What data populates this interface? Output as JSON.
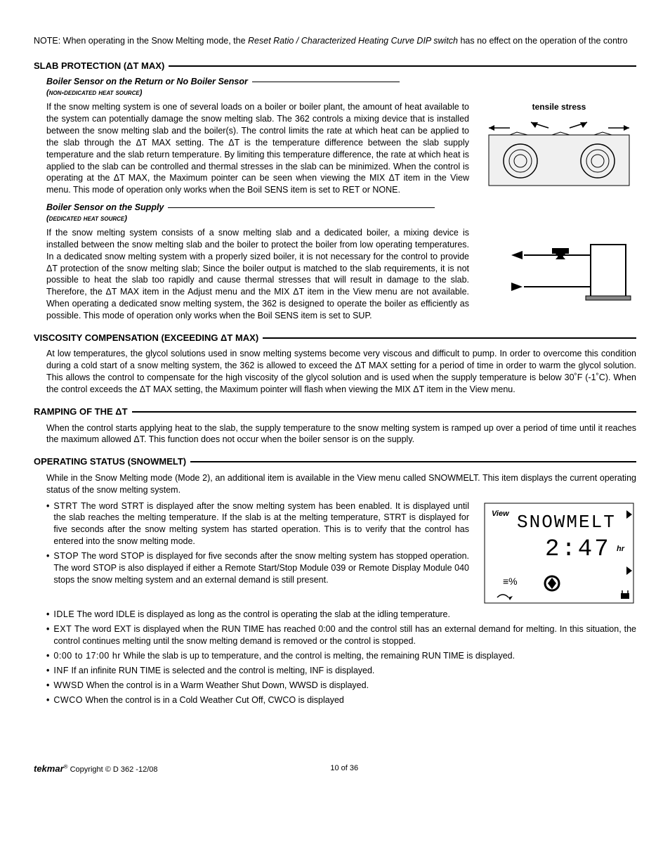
{
  "note": {
    "prefix": "NOTE: When operating in the Snow Melting mode, the ",
    "italic": "Reset Ratio / Characterized Heating Curve DIP switch",
    "suffix": " has no effect on the operation of the  contro"
  },
  "slab_protection": {
    "heading": "SLAB PROTECTION (ΔT MAX)",
    "sub1": {
      "title": "Boiler Sensor on the Return or No Boiler Sensor",
      "caption": "(non-dedicated heat source)",
      "body": "If the snow melting system is one of several loads on a boiler or boiler plant, the amount of heat available to the system can potentially damage the snow melting slab. The 362 controls a mixing device that is installed between the snow melting slab and the boiler(s). The control limits the rate at which heat can be applied to the slab through the ΔT MAX setting. The ΔT is the temperature difference between the slab supply temperature and the slab return temperature. By limiting this temperature difference, the rate at which heat is applied to the slab can be controlled and thermal stresses in the slab can be minimized. When the control is operating at the ΔT MAX, the Maximum pointer can be seen when viewing the MIX ΔT item in the View menu. This mode of operation only works when the Boil SENS item is set to RET or NONE.",
      "diagram_label": "tensile stress"
    },
    "sub2": {
      "title": "Boiler Sensor on the Supply",
      "caption": "(dedicated heat source)",
      "body": "If the snow melting system consists of a snow melting slab and a dedicated boiler, a mixing device is installed between the snow melting slab and the boiler to protect the boiler from low operating temperatures. In a dedicated snow melting system with a properly sized boiler, it is not necessary for the control to provide ΔT protection of the snow melting slab; Since the boiler output is matched to the slab requirements, it is not possible to heat the slab too rapidly and cause thermal stresses that will result in damage to the slab. Therefore, the ΔT MAX item in the Adjust menu and the MIX ΔT item in the View menu are not available. When operating a dedicated snow melting system, the 362 is designed to operate the boiler as efficiently as possible. This mode of operation only works when the Boil SENS item is set to SUP."
    }
  },
  "viscosity": {
    "heading": "VISCOSITY COMPENSATION (EXCEEDING ΔT MAX)",
    "body": "At low temperatures, the glycol solutions used in snow melting systems become very viscous and difficult to pump. In order to overcome this condition during a cold start of a snow melting system, the 362 is allowed to exceed the ΔT MAX setting for a period of time in order to warm the glycol solution. This allows the control to compensate for the high viscosity of the glycol solution and is used when the supply temperature is below 30˚F (-1˚C). When the control exceeds the ΔT MAX setting, the Maximum pointer will flash when viewing the MIX ΔT item in the View menu."
  },
  "ramping": {
    "heading": "RAMPING OF THE ΔT",
    "body": "When the control starts applying heat to the slab, the supply temperature to the snow melting system is ramped up over a period of time until it reaches the maximum allowed ΔT. This function does not occur when the boiler sensor is on the supply."
  },
  "operating": {
    "heading": "OPERATING STATUS (SNOWMELT)",
    "intro": "While in the Snow Melting mode (Mode 2), an additional item is available in the View menu called SNOWMELT. This item displays the current operating status of the snow melting system.",
    "lcd": {
      "view_label": "View",
      "line1": "SNOWMELT",
      "line2": "2:47",
      "unit": "hr"
    },
    "bullets_narrow": [
      {
        "lead": "STRT",
        "text": " The word STRT is displayed after the snow melting system has been enabled. It is displayed until the slab reaches the melting temperature. If the slab is at the melting temperature, STRT is displayed for five seconds after the snow melting system has started operation. This is to verify that the control has entered into the snow melting mode."
      },
      {
        "lead": "STOP",
        "text": " The word STOP is displayed for five seconds after the snow melting system has stopped operation. The word STOP is also displayed if either a Remote Start/Stop Module 039 or Remote Display Module 040 stops the snow melting system and an external demand is still present."
      }
    ],
    "bullets_wide": [
      {
        "lead": "IDLE",
        "text": " The word IDLE is displayed as long as the control is operating the slab at the idling temperature."
      },
      {
        "lead": "EXT",
        "text": " The word EXT is displayed when the RUN TIME has reached 0:00 and the control still has an external demand for melting. In this situation, the control continues melting until the snow melting demand is removed or the control is stopped."
      },
      {
        "lead": "0:00 to 17:00 hr",
        "text": " While the slab is up to temperature, and the control is melting, the remaining RUN TIME is displayed."
      },
      {
        "lead": "INF",
        "text": " If an infinite RUN TIME is selected and the control is melting, INF is displayed."
      },
      {
        "lead": "WWSD",
        "text": " When the control is in a Warm Weather Shut Down, WWSD is displayed."
      },
      {
        "lead": "CWCO",
        "text": " When the control is in a Cold Weather Cut Off, CWCO is displayed"
      }
    ]
  },
  "footer": {
    "brand": "tekmar",
    "copyright": " Copyright © D 362 -12/08",
    "page": "10 of 36"
  }
}
